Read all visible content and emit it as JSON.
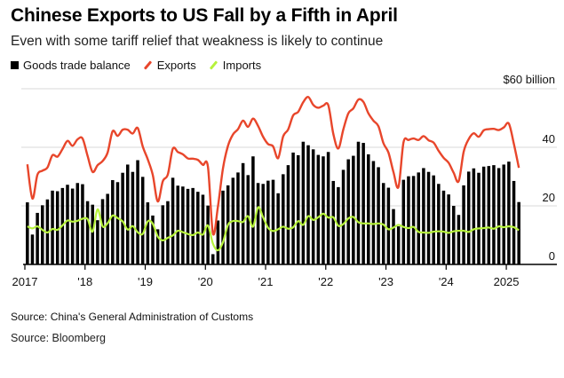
{
  "header": {
    "title": "Chinese Exports to US Fall by a Fifth in April",
    "subtitle": "Even with some tariff relief that weakness is likely to continue"
  },
  "legend": {
    "items": [
      {
        "label": "Goods trade balance",
        "color": "#000000",
        "kind": "bar"
      },
      {
        "label": "Exports",
        "color": "#e8462b",
        "kind": "line"
      },
      {
        "label": "Imports",
        "color": "#b6f23c",
        "kind": "line"
      }
    ]
  },
  "sources": {
    "customs": "Source: China's General Administration of Customs",
    "bloomberg": "Source: Bloomberg"
  },
  "colors": {
    "balance": "#000000",
    "exports": "#e8462b",
    "imports": "#b6f23c",
    "grid": "#d9d9d9",
    "axis": "#000000"
  },
  "chart_data": {
    "type": "bar",
    "unit_label": "$60 billion",
    "ylim": [
      0,
      60
    ],
    "y_ticks": [
      "0",
      "20",
      "40"
    ],
    "x_tick_labels": [
      "2017",
      "'18",
      "'19",
      "'20",
      "'21",
      "'22",
      "'23",
      "'24",
      "2025"
    ],
    "start": "2017-01",
    "frequency": "monthly",
    "grid": true,
    "legend_position": "top-left",
    "series": [
      {
        "name": "Goods trade balance",
        "type": "bar",
        "values": [
          21.2,
          10.2,
          17.6,
          20.2,
          22.2,
          25.2,
          25.0,
          26.1,
          27.2,
          25.9,
          27.8,
          27.4,
          21.6,
          20.4,
          15.1,
          22.3,
          24.1,
          28.8,
          28.1,
          31.3,
          34.1,
          31.6,
          35.6,
          29.9,
          21.2,
          16.7,
          12.0,
          20.2,
          21.6,
          29.6,
          26.9,
          26.6,
          25.8,
          26.1,
          24.8,
          23.8,
          20.1,
          3.5,
          15.0,
          25.2,
          27.0,
          29.6,
          31.4,
          34.6,
          30.5,
          36.9,
          27.8,
          27.5,
          28.6,
          28.9,
          24.3,
          30.8,
          33.9,
          38.2,
          37.3,
          41.9,
          40.7,
          39.3,
          37.4,
          36.9,
          38.4,
          28.5,
          26.4,
          32.3,
          35.9,
          37.1,
          41.9,
          41.5,
          37.6,
          35.3,
          33.2,
          27.8,
          26.2,
          18.9,
          13.0,
          28.9,
          30.1,
          30.2,
          31.4,
          32.9,
          31.6,
          30.4,
          27.5,
          25.2,
          23.9,
          20.0,
          16.9,
          27.0,
          31.7,
          32.8,
          31.3,
          33.4,
          33.6,
          33.9,
          32.9,
          34.1,
          35.1,
          28.5,
          21.3
        ]
      },
      {
        "name": "Exports",
        "type": "line",
        "values": [
          34.2,
          22.5,
          30.6,
          32.0,
          33.1,
          37.3,
          36.8,
          39.4,
          42.2,
          40.5,
          42.7,
          43.0,
          37.1,
          31.6,
          33.9,
          35.3,
          38.2,
          45.5,
          43.9,
          46.0,
          46.0,
          44.7,
          46.6,
          40.3,
          35.9,
          30.6,
          21.5,
          28.4,
          30.7,
          39.5,
          38.4,
          37.6,
          36.2,
          36.1,
          35.7,
          34.0,
          33.4,
          10.6,
          19.8,
          32.8,
          40.5,
          44.4,
          46.2,
          49.1,
          47.0,
          49.8,
          47.3,
          43.6,
          41.1,
          40.3,
          36.3,
          43.7,
          46.1,
          50.9,
          52.1,
          55.4,
          57.2,
          54.5,
          53.5,
          54.2,
          54.4,
          44.6,
          39.6,
          46.1,
          51.6,
          53.3,
          56.3,
          55.5,
          51.6,
          49.1,
          47.2,
          41.4,
          38.2,
          31.5,
          26.5,
          41.7,
          42.5,
          43.0,
          42.5,
          43.8,
          42.4,
          41.6,
          38.8,
          36.4,
          34.7,
          31.3,
          28.4,
          38.5,
          42.8,
          44.8,
          43.6,
          45.8,
          46.2,
          46.3,
          45.9,
          46.8,
          48.1,
          41.2,
          33.0
        ]
      },
      {
        "name": "Imports",
        "type": "line",
        "values": [
          13.0,
          12.3,
          13.0,
          11.8,
          10.9,
          12.1,
          11.8,
          13.3,
          15.0,
          14.6,
          14.9,
          15.6,
          15.5,
          11.2,
          18.8,
          13.0,
          14.1,
          16.7,
          15.8,
          14.7,
          11.9,
          13.1,
          11.0,
          10.4,
          14.7,
          13.9,
          9.5,
          8.2,
          9.1,
          9.9,
          11.5,
          11.0,
          10.4,
          10.0,
          10.9,
          10.2,
          13.3,
          7.1,
          4.8,
          7.6,
          13.5,
          14.8,
          14.8,
          14.5,
          16.5,
          12.9,
          19.5,
          16.1,
          12.5,
          11.4,
          12.0,
          12.9,
          12.2,
          12.7,
          14.8,
          13.5,
          16.5,
          15.2,
          16.1,
          17.3,
          16.0,
          16.1,
          13.2,
          13.8,
          15.7,
          16.2,
          14.4,
          14.0,
          14.0,
          13.8,
          14.0,
          13.6,
          12.0,
          12.6,
          13.5,
          12.8,
          12.4,
          12.8,
          11.1,
          10.9,
          10.8,
          11.2,
          11.3,
          11.2,
          10.8,
          11.3,
          11.5,
          11.5,
          11.1,
          12.0,
          12.3,
          12.4,
          12.6,
          12.2,
          13.0,
          12.7,
          13.0,
          12.7,
          11.7
        ]
      }
    ]
  }
}
